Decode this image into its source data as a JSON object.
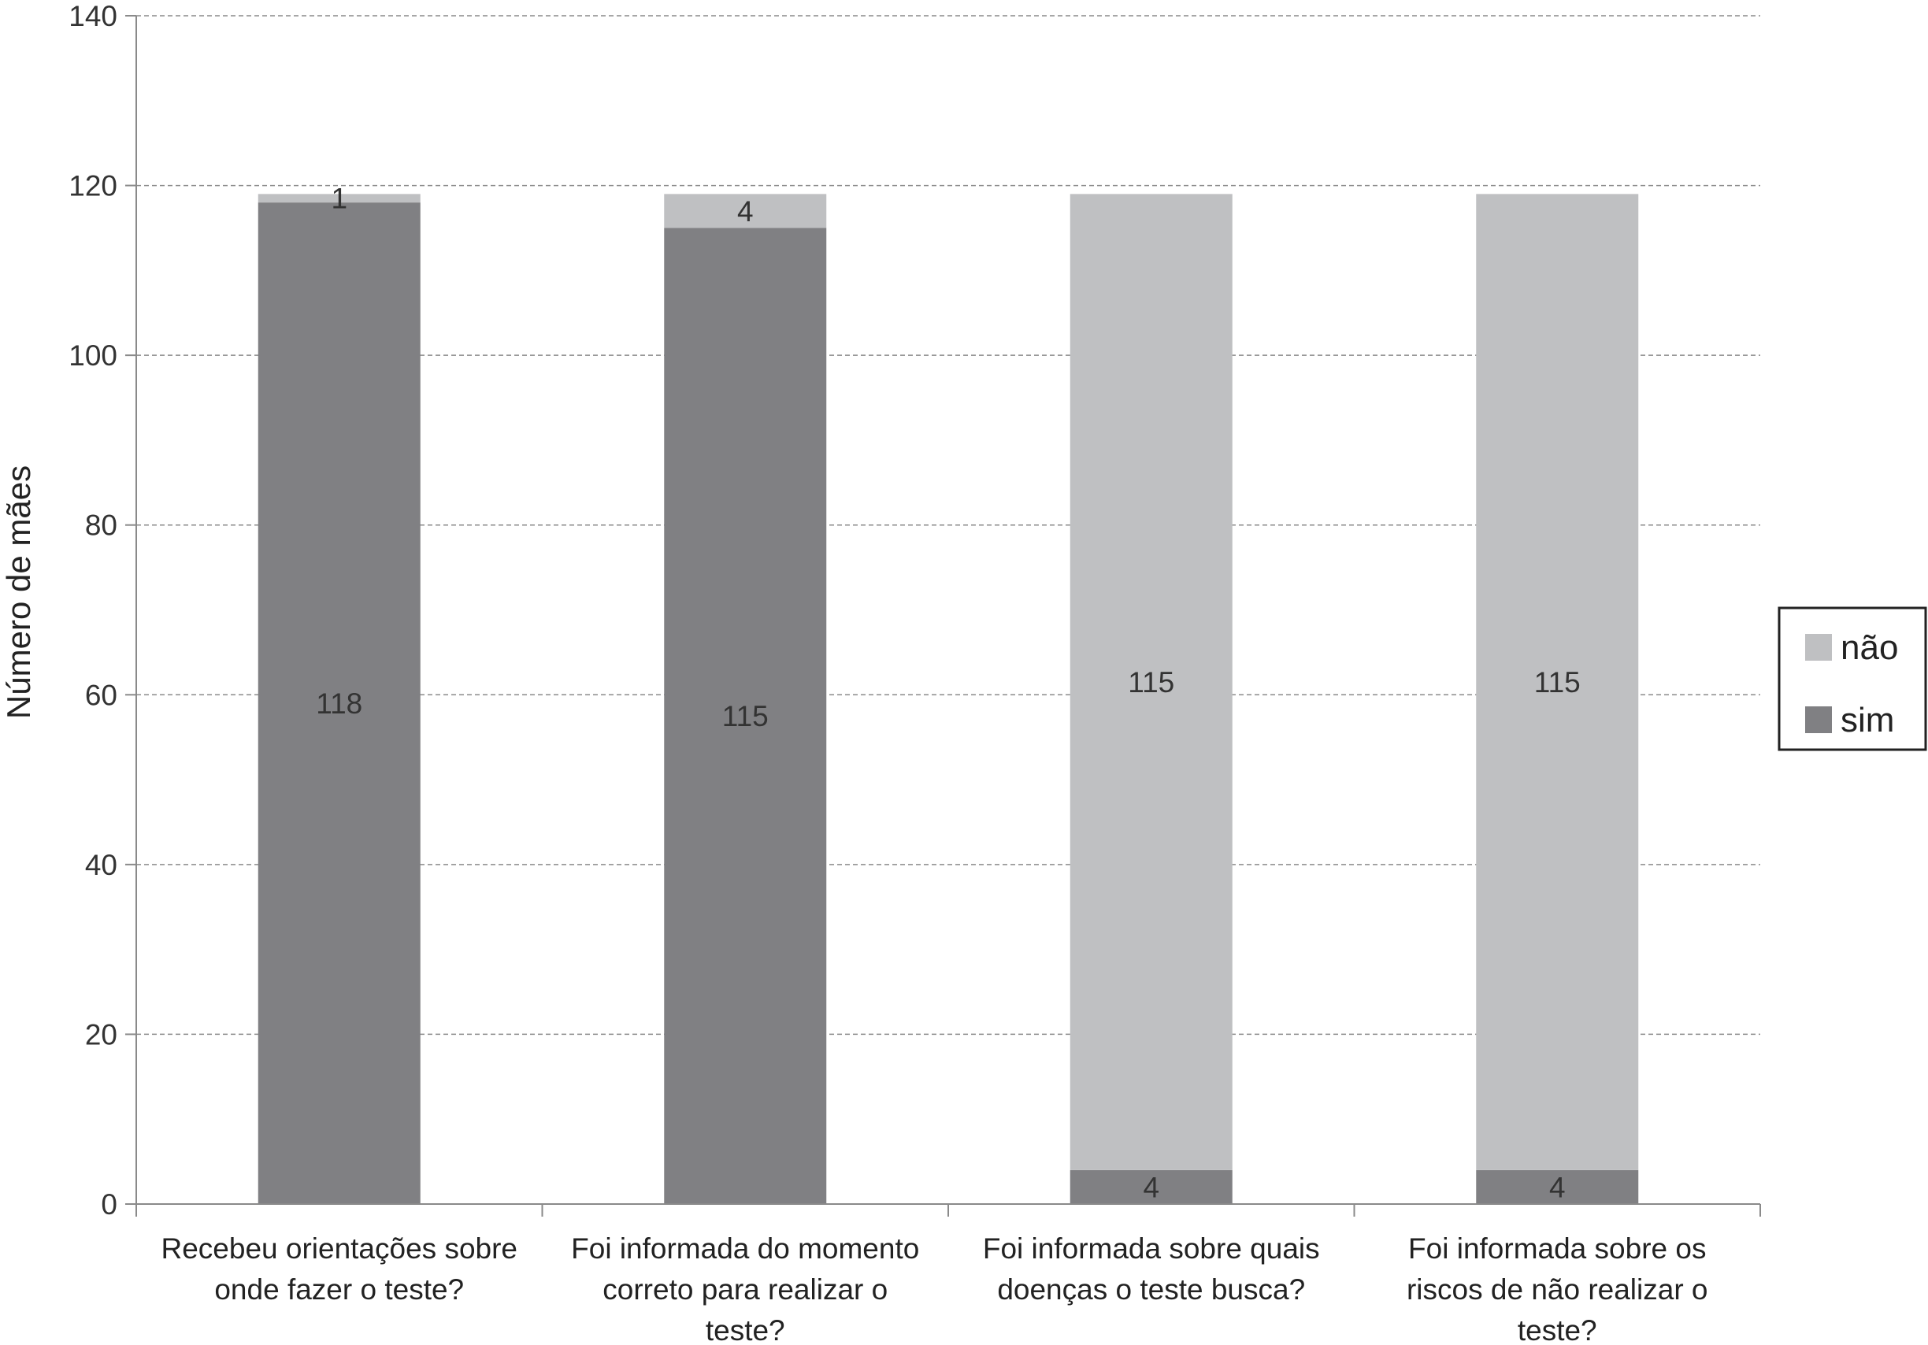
{
  "chart_data": {
    "type": "bar",
    "stacked": true,
    "ylabel": "Número de mães",
    "ylim": [
      0,
      140
    ],
    "yticks": [
      0,
      20,
      40,
      60,
      80,
      100,
      120,
      140
    ],
    "grid": true,
    "legend_position": "right",
    "categories": [
      [
        "Recebeu orientações sobre",
        "onde fazer o teste?"
      ],
      [
        "Foi informada do momento",
        "correto para realizar o",
        "teste?"
      ],
      [
        "Foi informada sobre quais",
        "doenças o teste busca?"
      ],
      [
        "Foi informada sobre os",
        "riscos de não realizar o",
        "teste?"
      ]
    ],
    "series": [
      {
        "name": "sim",
        "color": "#808083",
        "values": [
          118,
          115,
          4,
          4
        ]
      },
      {
        "name": "não",
        "color": "#bfc0c2",
        "values": [
          1,
          4,
          115,
          115
        ]
      }
    ],
    "legend": [
      {
        "name": "não",
        "color": "#bfc0c2"
      },
      {
        "name": "sim",
        "color": "#808083"
      }
    ]
  }
}
